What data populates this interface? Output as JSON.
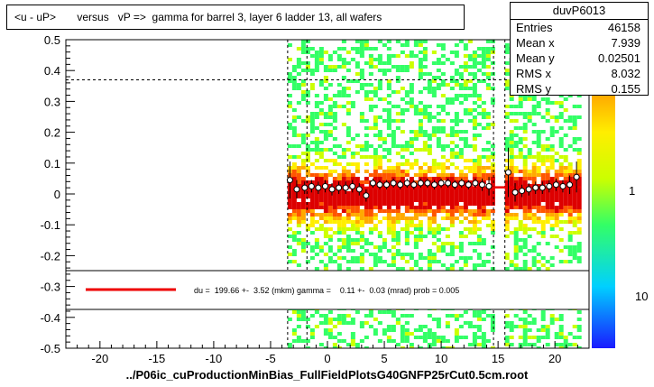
{
  "title": "<u - uP>       versus   vP =>  gamma for barrel 3, layer 6 ladder 13, all wafers",
  "stats": {
    "name": "duvP6013",
    "rows": [
      {
        "label": "Entries",
        "value": "46158"
      },
      {
        "label": "Mean x",
        "value": "7.939"
      },
      {
        "label": "Mean y",
        "value": "0.02501"
      },
      {
        "label": "RMS x",
        "value": "8.032"
      },
      {
        "label": "RMS y",
        "value": "0.155"
      }
    ]
  },
  "fit_legend": "du =  199.66 +-  3.52 (mkm) gamma =    0.11 +-  0.03 (mrad) prob = 0.005",
  "footer": "../P06ic_cuProductionMinBias_FullFieldPlotsG40GNFP25rCut0.5cm.root",
  "colors": {
    "fit_line": "#ee0000",
    "profile_marker": "#000000",
    "palette": [
      "#1a1aff",
      "#00d0ff",
      "#33ff66",
      "#ccff00",
      "#ffee00",
      "#ffaa00",
      "#ff5500",
      "#dd0000"
    ]
  },
  "chart_data": {
    "type": "heatmap",
    "xlim": [
      -23,
      23
    ],
    "ylim": [
      -0.5,
      0.5
    ],
    "x_ticks": [
      -20,
      -15,
      -10,
      -5,
      0,
      5,
      10,
      15,
      20
    ],
    "x_tick_labels": [
      "-20",
      "-15",
      "-10",
      "-5",
      "0",
      "5",
      "10",
      "15",
      "20"
    ],
    "y_ticks": [
      -0.5,
      -0.4,
      -0.3,
      -0.2,
      -0.1,
      0,
      0.1,
      0.2,
      0.3,
      0.4,
      0.5
    ],
    "y_tick_labels": [
      "-0.5",
      "-0.4",
      "-0.3",
      "-0.2",
      "-0.1",
      "0",
      "0.1",
      "0.2",
      "0.3",
      "0.4",
      "0.5"
    ],
    "z_scale": "log",
    "z_tick_labels": [
      "1",
      "10"
    ],
    "data_bands": [
      {
        "x": [
          -3.5,
          14.6
        ]
      },
      {
        "x": [
          15.6,
          22.3
        ]
      }
    ],
    "dashed_guides_x": [
      -3.5,
      -1.8,
      14.6,
      15.6
    ],
    "dashed_guides_y": [
      0.37,
      -0.37
    ],
    "profile": {
      "x": [
        -3.3,
        -2.7,
        -2.0,
        -1.4,
        -0.8,
        -0.2,
        0.4,
        1.0,
        1.6,
        2.2,
        2.8,
        3.4,
        4.0,
        4.6,
        5.2,
        5.8,
        6.4,
        7.0,
        7.6,
        8.2,
        8.8,
        9.4,
        10.0,
        10.6,
        11.2,
        11.8,
        12.4,
        13.0,
        13.6,
        14.2,
        15.9,
        16.5,
        17.1,
        17.7,
        18.3,
        18.9,
        19.5,
        20.1,
        20.7,
        21.3,
        21.9
      ],
      "y": [
        0.045,
        0.015,
        0.02,
        0.025,
        0.02,
        0.025,
        0.015,
        0.02,
        0.02,
        0.025,
        0.015,
        -0.005,
        0.035,
        0.03,
        0.03,
        0.035,
        0.03,
        0.035,
        0.03,
        0.035,
        0.035,
        0.03,
        0.035,
        0.035,
        0.03,
        0.035,
        0.03,
        0.035,
        0.03,
        0.025,
        0.07,
        0.005,
        0.01,
        0.015,
        0.02,
        0.02,
        0.025,
        0.03,
        0.025,
        0.03,
        0.055
      ],
      "err": [
        0.06,
        0.03,
        0.02,
        0.02,
        0.02,
        0.02,
        0.02,
        0.02,
        0.02,
        0.02,
        0.02,
        0.02,
        0.015,
        0.015,
        0.015,
        0.015,
        0.015,
        0.015,
        0.015,
        0.015,
        0.015,
        0.015,
        0.015,
        0.015,
        0.015,
        0.015,
        0.015,
        0.015,
        0.02,
        0.03,
        0.08,
        0.03,
        0.02,
        0.02,
        0.02,
        0.02,
        0.02,
        0.02,
        0.02,
        0.03,
        0.05
      ]
    },
    "fit_line": {
      "x": [
        -3.5,
        22.3
      ],
      "y": [
        0.02,
        0.022
      ]
    }
  }
}
